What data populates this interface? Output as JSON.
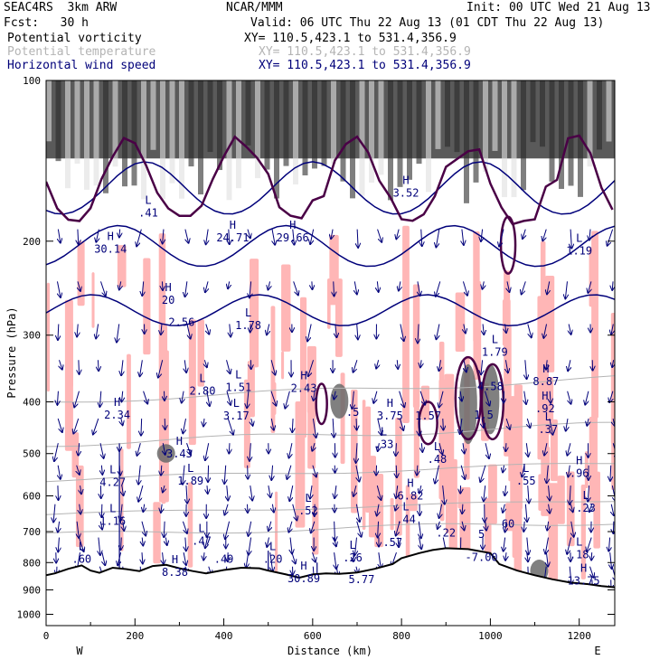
{
  "header": {
    "model": "SEAC4RS  3km ARW",
    "org": "NCAR/MMM",
    "init": "Init: 00 UTC Wed 21 Aug 13",
    "fcst": "Fcst:   30 h",
    "valid": "Valid: 06 UTC Thu 22 Aug 13 (01 CDT Thu 22 Aug 13)",
    "fields": [
      {
        "label": "Potential vorticity",
        "xy": "XY= 110.5,423.1 to 531.4,356.9",
        "color": "#000000"
      },
      {
        "label": "Potential temperature",
        "xy": "XY= 110.5,423.1 to 531.4,356.9",
        "color": "#b4b4b4"
      },
      {
        "label": "Horizontal wind speed",
        "xy": "XY= 110.5,423.1 to 531.4,356.9",
        "color": "#00007a"
      }
    ]
  },
  "chart_data": {
    "type": "cross-section",
    "xlabel": "Distance (km)",
    "ylabel": "Pressure (hPa)",
    "xlim": [
      0,
      1280
    ],
    "ylim": [
      1050,
      100
    ],
    "y_scale": "log",
    "x_ticks": [
      0,
      200,
      400,
      600,
      800,
      1000,
      1200
    ],
    "x_tick_labels": [
      "0",
      "200",
      "400",
      "600",
      "800",
      "1000",
      "1200"
    ],
    "y_ticks": [
      100,
      200,
      300,
      400,
      500,
      600,
      700,
      800,
      900,
      1000
    ],
    "y_tick_labels": [
      "100",
      "200",
      "300",
      "400",
      "500",
      "600",
      "700",
      "800",
      "900",
      "1000"
    ],
    "end_labels": {
      "west": "W",
      "east": "E"
    },
    "colors": {
      "pv_shading": "#ffb6b6",
      "wind_contour": "#00007a",
      "theta_contour": "#b4b4b4",
      "pv_contour": "#4a0046",
      "terrain": "#000000"
    },
    "terrain": {
      "x": [
        0,
        20,
        50,
        80,
        100,
        120,
        150,
        180,
        210,
        240,
        270,
        300,
        330,
        360,
        400,
        440,
        480,
        500,
        540,
        570,
        600,
        630,
        660,
        700,
        740,
        780,
        800,
        840,
        870,
        900,
        950,
        1000,
        1020,
        1060,
        1100,
        1140,
        1180,
        1220,
        1250,
        1280
      ],
      "p": [
        845,
        838,
        822,
        810,
        828,
        836,
        818,
        823,
        830,
        812,
        808,
        820,
        830,
        838,
        826,
        818,
        820,
        828,
        842,
        854,
        842,
        838,
        840,
        835,
        822,
        805,
        785,
        768,
        758,
        752,
        755,
        768,
        805,
        828,
        845,
        860,
        872,
        878,
        885,
        890
      ]
    },
    "h_l_labels": [
      {
        "type": "L",
        "value": ".41",
        "x": 230,
        "p": 180
      },
      {
        "type": "H",
        "value": "30.14",
        "x": 145,
        "p": 210
      },
      {
        "type": "H",
        "value": "24.71",
        "x": 420,
        "p": 200
      },
      {
        "type": "H",
        "value": "29.66",
        "x": 555,
        "p": 200
      },
      {
        "type": "H",
        "value": "3.52",
        "x": 810,
        "p": 165
      },
      {
        "type": "L",
        "value": "1.19",
        "x": 1200,
        "p": 212
      },
      {
        "type": "H",
        "value": "20",
        "x": 275,
        "p": 262
      },
      {
        "type": "",
        "value": "2.56",
        "x": 305,
        "p": 288
      },
      {
        "type": "L",
        "value": "1.78",
        "x": 455,
        "p": 292
      },
      {
        "type": "L",
        "value": "1.79",
        "x": 1010,
        "p": 328
      },
      {
        "type": "H",
        "value": "8.87",
        "x": 1125,
        "p": 372
      },
      {
        "type": "L",
        "value": "2.80",
        "x": 352,
        "p": 388
      },
      {
        "type": "L",
        "value": "1.51",
        "x": 433,
        "p": 382
      },
      {
        "type": "H",
        "value": "2.43",
        "x": 580,
        "p": 383
      },
      {
        "type": "",
        "value": "4.58",
        "x": 1000,
        "p": 380
      },
      {
        "type": "H",
        "value": "2.34",
        "x": 160,
        "p": 430
      },
      {
        "type": "L",
        "value": "3.17",
        "x": 428,
        "p": 432
      },
      {
        "type": "",
        "value": ".5",
        "x": 690,
        "p": 425
      },
      {
        "type": "H",
        "value": "3.75",
        "x": 774,
        "p": 432
      },
      {
        "type": "",
        "value": "1.57",
        "x": 860,
        "p": 432
      },
      {
        "type": "",
        "value": "1.5",
        "x": 985,
        "p": 430
      },
      {
        "type": "H",
        "value": ".92",
        "x": 1123,
        "p": 418
      },
      {
        "type": "L",
        "value": ".37",
        "x": 1130,
        "p": 458
      },
      {
        "type": "L",
        "value": ".33",
        "x": 760,
        "p": 488
      },
      {
        "type": "H",
        "value": "3.43",
        "x": 300,
        "p": 508
      },
      {
        "type": "L",
        "value": ".48",
        "x": 880,
        "p": 520
      },
      {
        "type": "L",
        "value": "4.27",
        "x": 150,
        "p": 575
      },
      {
        "type": "L",
        "value": "1.89",
        "x": 325,
        "p": 572
      },
      {
        "type": "L",
        "value": ".55",
        "x": 1080,
        "p": 572
      },
      {
        "type": "H",
        "value": ".96",
        "x": 1200,
        "p": 553
      },
      {
        "type": "H",
        "value": "6.82",
        "x": 820,
        "p": 610
      },
      {
        "type": "L",
        "value": ".52",
        "x": 590,
        "p": 650
      },
      {
        "type": "L",
        "value": ".23",
        "x": 1215,
        "p": 642
      },
      {
        "type": "L",
        "value": "1.16",
        "x": 150,
        "p": 680
      },
      {
        "type": "L",
        "value": ".44",
        "x": 810,
        "p": 675
      },
      {
        "type": "",
        "value": "60",
        "x": 1040,
        "p": 688
      },
      {
        "type": "L",
        "value": ".47",
        "x": 350,
        "p": 740
      },
      {
        "type": "",
        "value": ".22",
        "x": 900,
        "p": 715
      },
      {
        "type": "",
        "value": "5",
        "x": 980,
        "p": 720
      },
      {
        "type": "L",
        "value": ".60",
        "x": 80,
        "p": 800
      },
      {
        "type": "H",
        "value": "8.38",
        "x": 290,
        "p": 848
      },
      {
        "type": "",
        "value": ".49",
        "x": 400,
        "p": 800
      },
      {
        "type": "L",
        "value": ".20",
        "x": 510,
        "p": 800
      },
      {
        "type": "L",
        "value": ".26",
        "x": 690,
        "p": 796
      },
      {
        "type": "",
        "value": ".57",
        "x": 780,
        "p": 745
      },
      {
        "type": "",
        "value": "-7.00",
        "x": 980,
        "p": 795
      },
      {
        "type": "L",
        "value": ".18",
        "x": 1200,
        "p": 785
      },
      {
        "type": "H",
        "value": "30.89",
        "x": 580,
        "p": 870
      },
      {
        "type": "",
        "value": "5.77",
        "x": 710,
        "p": 875
      },
      {
        "type": "H",
        "value": "13.75",
        "x": 1210,
        "p": 880
      }
    ]
  }
}
